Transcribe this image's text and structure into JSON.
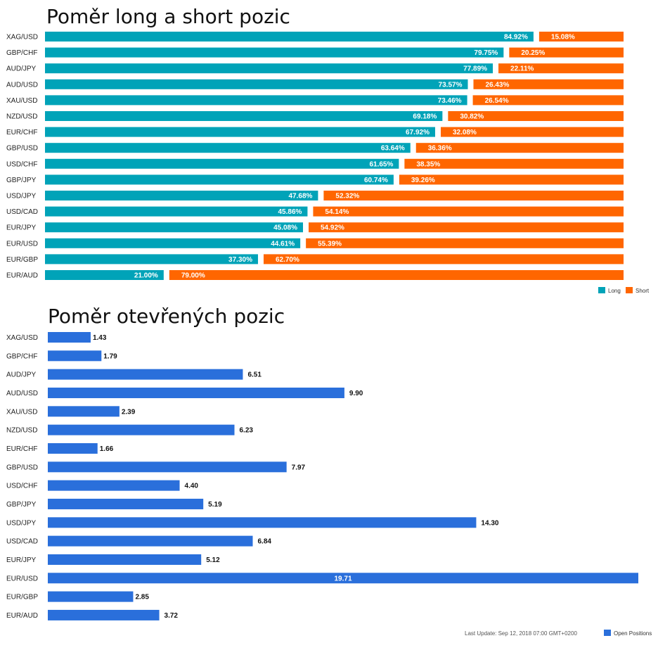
{
  "colors": {
    "long": "#00a3b8",
    "short": "#ff6600",
    "open": "#2a6fdb"
  },
  "chart_data": [
    {
      "type": "bar",
      "stacked": true,
      "orientation": "horizontal",
      "title": "Poměr long a short pozic",
      "categories": [
        "XAG/USD",
        "GBP/CHF",
        "AUD/JPY",
        "AUD/USD",
        "XAU/USD",
        "NZD/USD",
        "EUR/CHF",
        "GBP/USD",
        "USD/CHF",
        "GBP/JPY",
        "USD/JPY",
        "USD/CAD",
        "EUR/JPY",
        "EUR/USD",
        "EUR/GBP",
        "EUR/AUD"
      ],
      "series": [
        {
          "name": "Long",
          "values": [
            84.92,
            79.75,
            77.89,
            73.57,
            73.46,
            69.18,
            67.92,
            63.64,
            61.65,
            60.74,
            47.68,
            45.86,
            45.08,
            44.61,
            37.3,
            21.0
          ],
          "labels": [
            "84.92%",
            "79.75%",
            "77.89%",
            "73.57%",
            "73.46%",
            "69.18%",
            "67.92%",
            "63.64%",
            "61.65%",
            "60.74%",
            "47.68%",
            "45.86%",
            "45.08%",
            "44.61%",
            "37.30%",
            "21.00%"
          ]
        },
        {
          "name": "Short",
          "values": [
            15.08,
            20.25,
            22.11,
            26.43,
            26.54,
            30.82,
            32.08,
            36.36,
            38.35,
            39.26,
            52.32,
            54.14,
            54.92,
            55.39,
            62.7,
            79.0
          ],
          "labels": [
            "15.08%",
            "20.25%",
            "22.11%",
            "26.43%",
            "26.54%",
            "30.82%",
            "32.08%",
            "36.36%",
            "38.35%",
            "39.26%",
            "52.32%",
            "54.14%",
            "54.92%",
            "55.39%",
            "62.70%",
            "79.00%"
          ]
        }
      ],
      "xlim": [
        0,
        100
      ],
      "legend": "bottom-right"
    },
    {
      "type": "bar",
      "orientation": "horizontal",
      "title": "Poměr otevřených pozic",
      "categories": [
        "XAG/USD",
        "GBP/CHF",
        "AUD/JPY",
        "AUD/USD",
        "XAU/USD",
        "NZD/USD",
        "EUR/CHF",
        "GBP/USD",
        "USD/CHF",
        "GBP/JPY",
        "USD/JPY",
        "USD/CAD",
        "EUR/JPY",
        "EUR/USD",
        "EUR/GBP",
        "EUR/AUD"
      ],
      "series": [
        {
          "name": "Open Positions",
          "values": [
            1.43,
            1.79,
            6.51,
            9.9,
            2.39,
            6.23,
            1.66,
            7.97,
            4.4,
            5.19,
            14.3,
            6.84,
            5.12,
            19.71,
            2.85,
            3.72
          ],
          "labels": [
            "1.43",
            "1.79",
            "6.51",
            "9.90",
            "2.39",
            "6.23",
            "1.66",
            "7.97",
            "4.40",
            "5.19",
            "14.30",
            "6.84",
            "5.12",
            "19.71",
            "2.85",
            "3.72"
          ]
        }
      ],
      "xlim": [
        0,
        19.71
      ],
      "legend": "bottom-right",
      "footer": "Last Update: Sep 12, 2018 07:00 GMT+0200"
    }
  ]
}
